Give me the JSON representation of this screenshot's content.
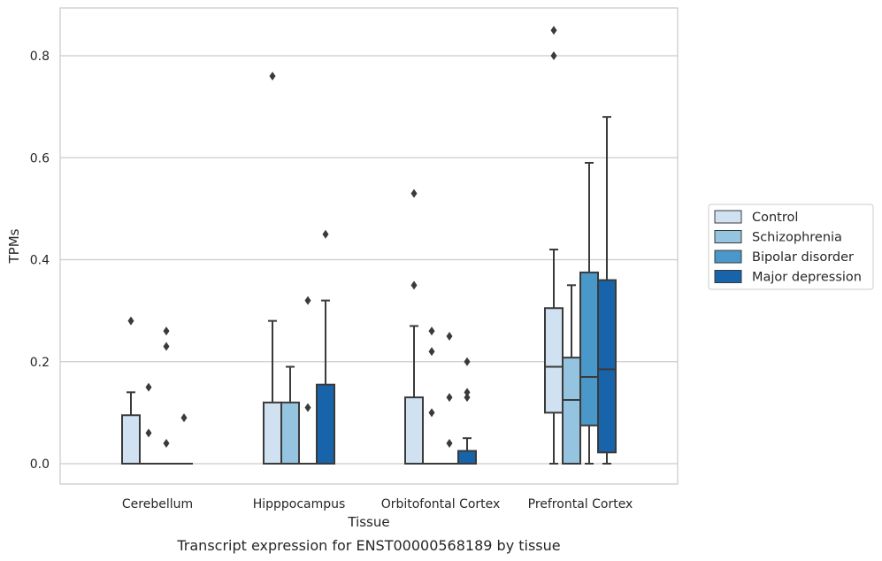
{
  "chart_data": {
    "type": "box",
    "title": "",
    "caption": "Transcript expression for ENST00000568189 by tissue",
    "xlabel": "Tissue",
    "ylabel": "TPMs",
    "ylim": [
      -0.04,
      0.895
    ],
    "yticks": [
      0.0,
      0.2,
      0.4,
      0.6,
      0.8
    ],
    "ytick_labels": [
      "0.0",
      "0.2",
      "0.4",
      "0.6",
      "0.8"
    ],
    "grid": "horizontal",
    "legend_position": "right",
    "categories": [
      "Cerebellum",
      "Hipppocampus",
      "Orbitofontal Cortex",
      "Prefrontal Cortex"
    ],
    "series": [
      {
        "name": "Control",
        "color": "#d0e1f2",
        "boxes": [
          {
            "q1": 0.0,
            "median": 0.0,
            "q3": 0.095,
            "whislo": 0.0,
            "whishi": 0.14,
            "fliers": [
              0.28
            ]
          },
          {
            "q1": 0.0,
            "median": 0.0,
            "q3": 0.12,
            "whislo": 0.0,
            "whishi": 0.28,
            "fliers": [
              0.76
            ]
          },
          {
            "q1": 0.0,
            "median": 0.0,
            "q3": 0.13,
            "whislo": 0.0,
            "whishi": 0.27,
            "fliers": [
              0.35,
              0.53
            ]
          },
          {
            "q1": 0.1,
            "median": 0.19,
            "q3": 0.305,
            "whislo": 0.0,
            "whishi": 0.42,
            "fliers": [
              0.8,
              0.85
            ]
          }
        ]
      },
      {
        "name": "Schizophrenia",
        "color": "#94c4df",
        "boxes": [
          {
            "q1": 0.0,
            "median": 0.0,
            "q3": 0.0,
            "whislo": 0.0,
            "whishi": 0.0,
            "fliers": [
              0.06,
              0.15
            ]
          },
          {
            "q1": 0.0,
            "median": 0.0,
            "q3": 0.12,
            "whislo": 0.0,
            "whishi": 0.19,
            "fliers": []
          },
          {
            "q1": 0.0,
            "median": 0.0,
            "q3": 0.0,
            "whislo": 0.0,
            "whishi": 0.0,
            "fliers": [
              0.1,
              0.22,
              0.26
            ]
          },
          {
            "q1": 0.0,
            "median": 0.125,
            "q3": 0.208,
            "whislo": 0.0,
            "whishi": 0.35,
            "fliers": []
          }
        ]
      },
      {
        "name": "Bipolar disorder",
        "color": "#4a98c9",
        "boxes": [
          {
            "q1": 0.0,
            "median": 0.0,
            "q3": 0.0,
            "whislo": 0.0,
            "whishi": 0.0,
            "fliers": [
              0.04,
              0.23,
              0.26
            ]
          },
          {
            "q1": 0.0,
            "median": 0.0,
            "q3": 0.0,
            "whislo": 0.0,
            "whishi": 0.0,
            "fliers": [
              0.11,
              0.32
            ]
          },
          {
            "q1": 0.0,
            "median": 0.0,
            "q3": 0.0,
            "whislo": 0.0,
            "whishi": 0.0,
            "fliers": [
              0.04,
              0.13,
              0.25
            ]
          },
          {
            "q1": 0.075,
            "median": 0.17,
            "q3": 0.375,
            "whislo": 0.0,
            "whishi": 0.59,
            "fliers": []
          }
        ]
      },
      {
        "name": "Major depression",
        "color": "#1764ab",
        "boxes": [
          {
            "q1": 0.0,
            "median": 0.0,
            "q3": 0.0,
            "whislo": 0.0,
            "whishi": 0.0,
            "fliers": [
              0.09
            ]
          },
          {
            "q1": 0.0,
            "median": 0.0,
            "q3": 0.155,
            "whislo": 0.0,
            "whishi": 0.32,
            "fliers": [
              0.45
            ]
          },
          {
            "q1": 0.0,
            "median": 0.0,
            "q3": 0.025,
            "whislo": 0.0,
            "whishi": 0.05,
            "fliers": [
              0.13,
              0.14,
              0.2
            ]
          },
          {
            "q1": 0.022,
            "median": 0.185,
            "q3": 0.36,
            "whislo": 0.0,
            "whishi": 0.68,
            "fliers": []
          }
        ]
      }
    ]
  }
}
